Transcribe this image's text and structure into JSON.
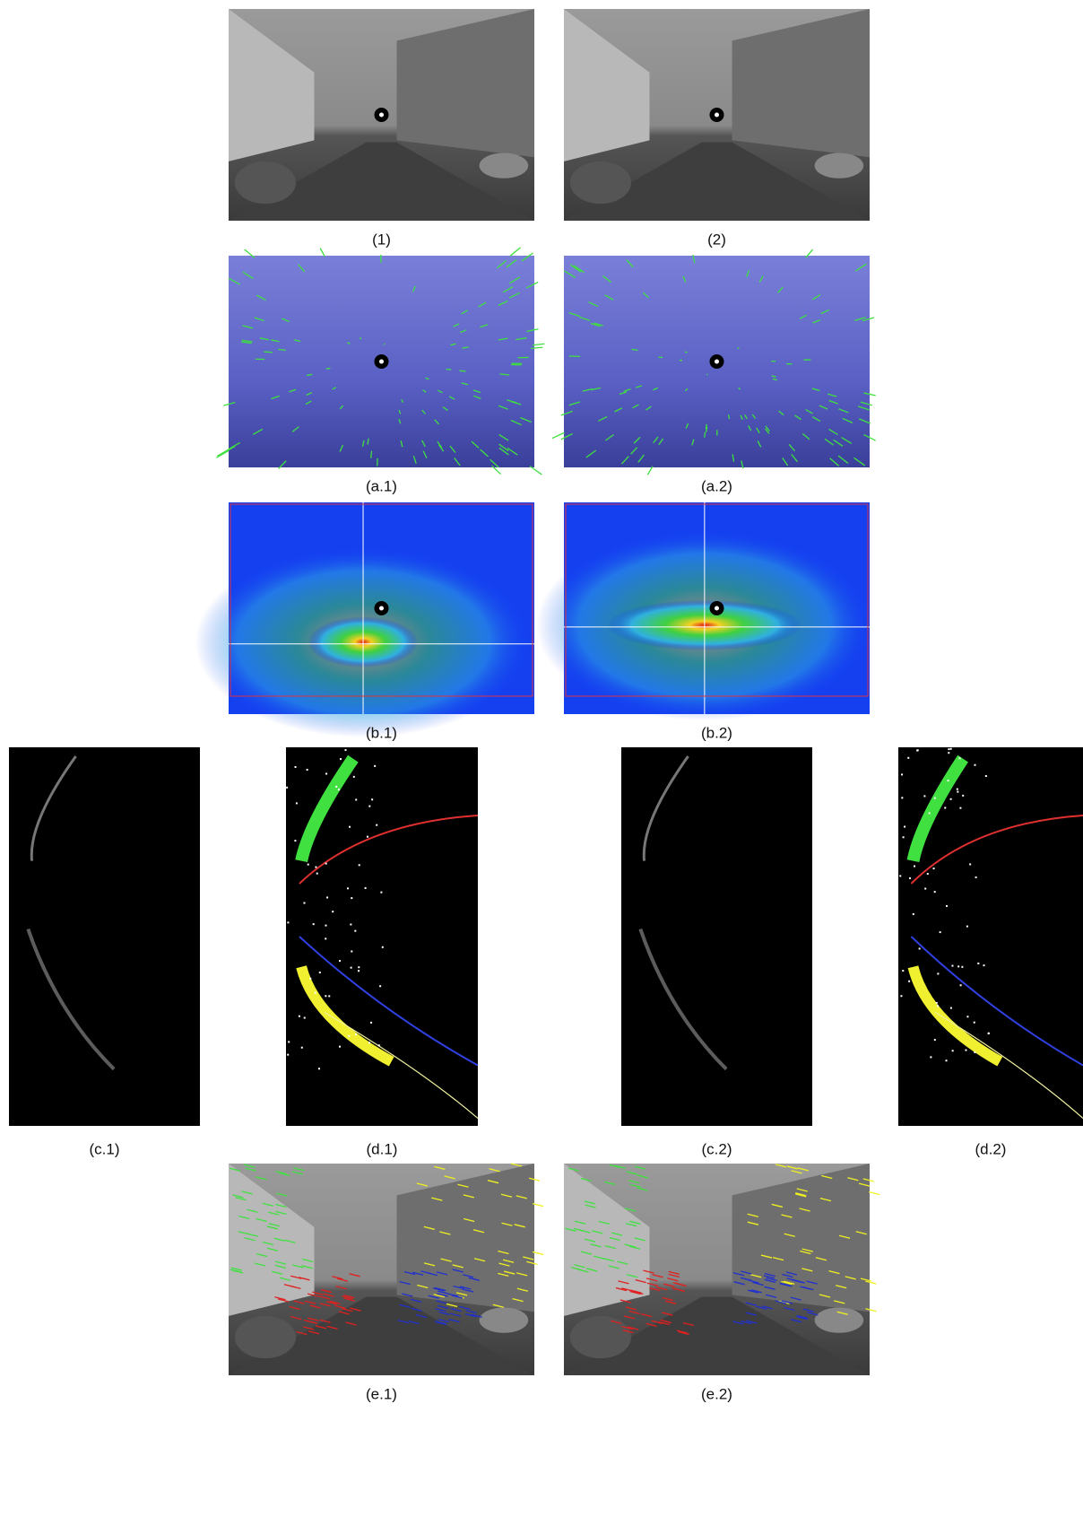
{
  "figure": {
    "panels": [
      {
        "label": "(1)"
      },
      {
        "label": "(2)"
      },
      {
        "label": "(a.1)"
      },
      {
        "label": "(a.2)"
      },
      {
        "label": "(b.1)"
      },
      {
        "label": "(b.2)"
      },
      {
        "label": "(c.1)"
      },
      {
        "label": "(d.1)"
      },
      {
        "label": "(c.2)"
      },
      {
        "label": "(d.2)"
      },
      {
        "label": "(e.1)"
      },
      {
        "label": "(e.2)"
      }
    ]
  }
}
